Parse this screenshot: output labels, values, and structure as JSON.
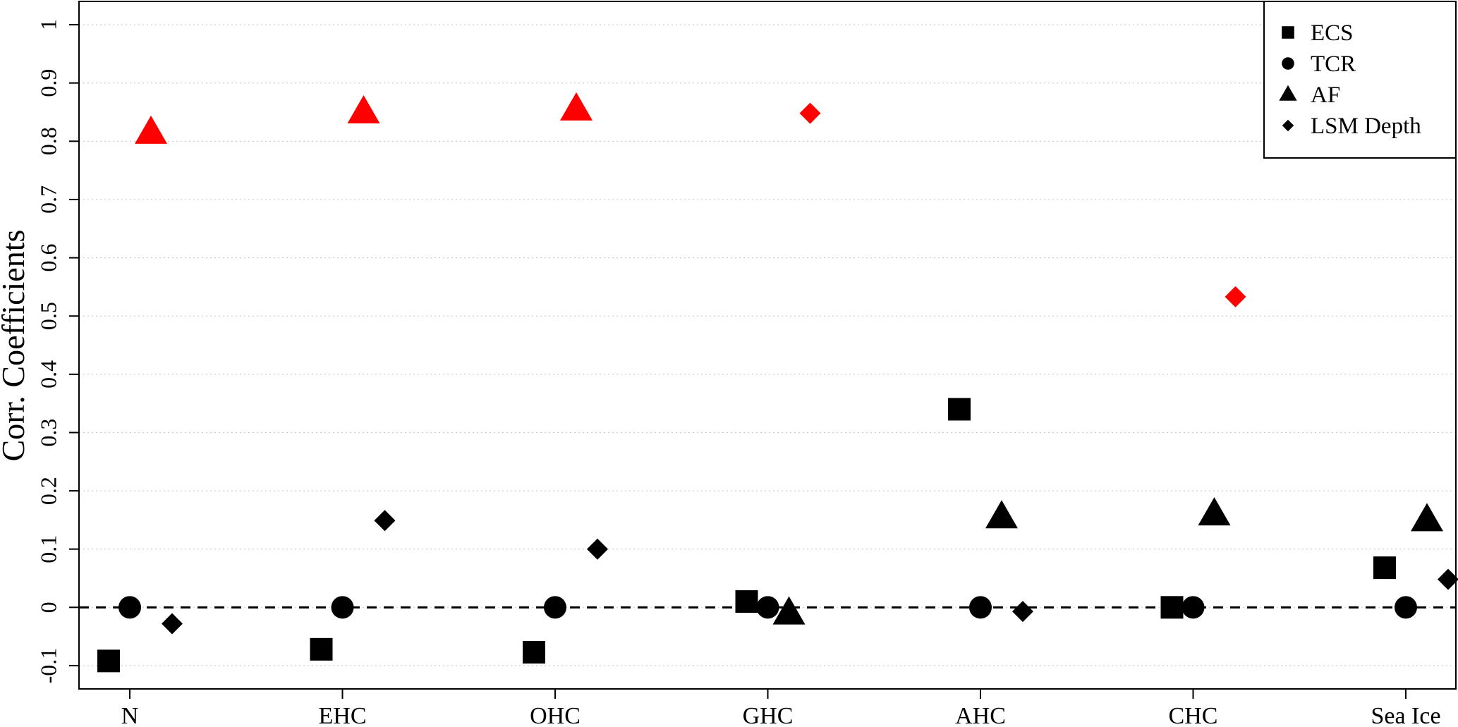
{
  "chart_data": {
    "type": "scatter",
    "ylabel": "Corr. Coefficients",
    "ylim": [
      -0.14,
      1.04
    ],
    "yticks": [
      -0.1,
      0,
      0.1,
      0.2,
      0.3,
      0.4,
      0.5,
      0.6,
      0.7,
      0.8,
      0.9,
      1
    ],
    "ytick_labels": [
      "-0.1",
      "0",
      "0.1",
      "0.2",
      "0.3",
      "0.4",
      "0.5",
      "0.6",
      "0.7",
      "0.8",
      "0.9",
      "1"
    ],
    "categories": [
      "N",
      "EHC",
      "OHC",
      "GHC",
      "AHC",
      "CHC",
      "Sea Ice"
    ],
    "grid": "horizontal dotted",
    "reference_line": 0,
    "highlight_color": "#ff0000",
    "base_color": "#000000",
    "legend": {
      "position": "top-right",
      "entries": [
        {
          "name": "ECS",
          "marker": "square"
        },
        {
          "name": "TCR",
          "marker": "circle"
        },
        {
          "name": "AF",
          "marker": "triangle"
        },
        {
          "name": "LSM Depth",
          "marker": "diamond"
        }
      ]
    },
    "series": [
      {
        "name": "ECS",
        "marker": "square",
        "values": [
          -0.092,
          -0.072,
          -0.077,
          0.01,
          0.34,
          0.0,
          0.068
        ],
        "highlighted": [
          false,
          false,
          false,
          false,
          false,
          false,
          false
        ]
      },
      {
        "name": "TCR",
        "marker": "circle",
        "values": [
          0.0,
          0.0,
          0.0,
          0.0,
          0.0,
          0.0,
          0.0
        ],
        "highlighted": [
          false,
          false,
          false,
          false,
          false,
          false,
          false
        ]
      },
      {
        "name": "AF",
        "marker": "triangle",
        "values": [
          0.815,
          0.85,
          0.855,
          -0.01,
          0.155,
          0.16,
          0.15
        ],
        "highlighted": [
          true,
          true,
          true,
          false,
          false,
          false,
          false
        ]
      },
      {
        "name": "LSM Depth",
        "marker": "diamond",
        "values": [
          -0.028,
          0.149,
          0.1,
          0.848,
          -0.007,
          0.533,
          0.048
        ],
        "highlighted": [
          false,
          false,
          false,
          true,
          false,
          true,
          false
        ]
      }
    ]
  }
}
